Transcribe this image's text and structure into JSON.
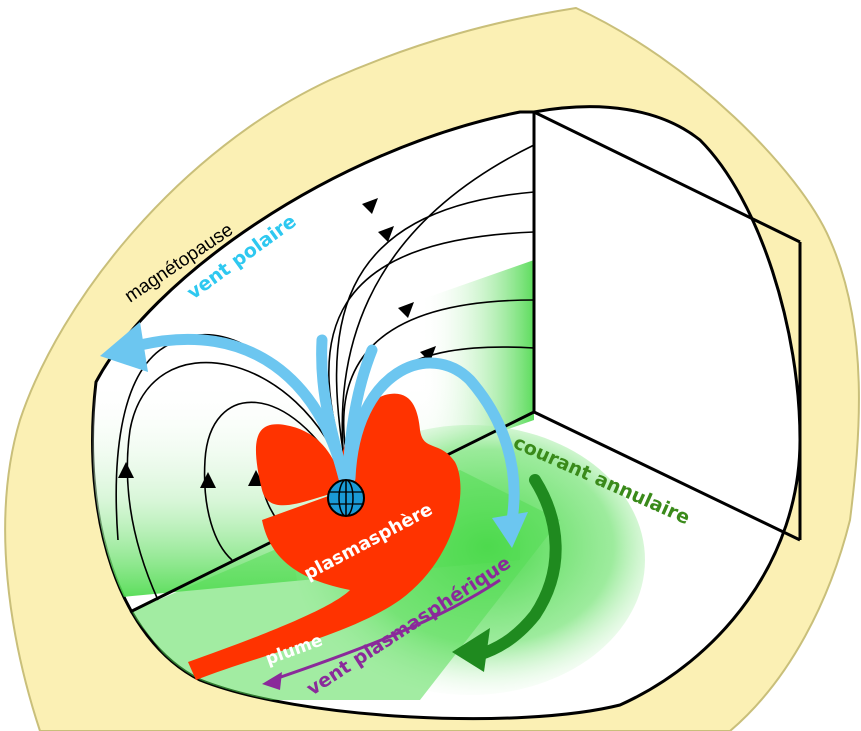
{
  "labels": {
    "magnetopause": "magnétopause",
    "polar_wind": "vent polaire",
    "ring_current": "courant annulaire",
    "plasmasphere": "plasmasphère",
    "plume": "plume",
    "plasmaspheric_wind": "vent plasmasphérique"
  },
  "colors": {
    "magnetopause_fill": "#fbf0b4",
    "magnetopause_stroke": "#c9bf7a",
    "plasmasphere": "#ff3300",
    "ring_current_glow": "#55dd55",
    "ring_current_arrow": "#1f8a1f",
    "ring_current_text": "#3a8a1a",
    "polar_wind": "#6cc6f0",
    "polar_wind_text": "#2ec8f0",
    "plasmaspheric_wind": "#8a2a9a",
    "field_lines": "#000000",
    "earth": "#1a9ad6"
  },
  "icons": {
    "earth": "earth-globe-icon"
  }
}
